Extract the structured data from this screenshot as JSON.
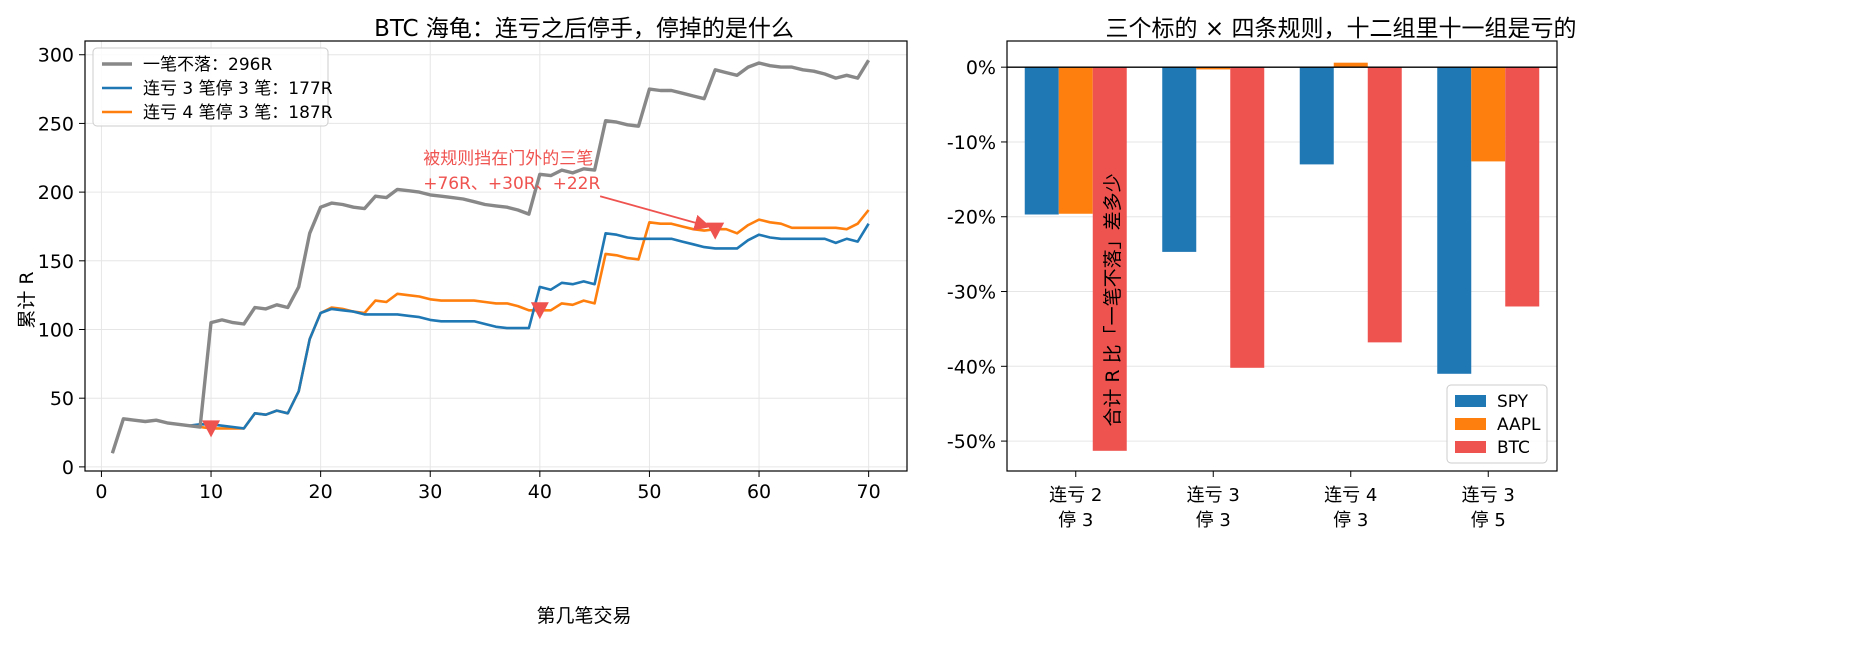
{
  "chart_data": [
    {
      "type": "line",
      "title": "BTC 海龟：连亏之后停手，停掉的是什么",
      "xlabel": "第几笔交易",
      "ylabel": "累计 R",
      "xlim": [
        -1.5,
        73.5
      ],
      "ylim": [
        -3,
        310
      ],
      "xticks": [
        0,
        10,
        20,
        30,
        40,
        50,
        60,
        70
      ],
      "yticks": [
        0,
        50,
        100,
        150,
        200,
        250,
        300
      ],
      "grid": true,
      "legend_position": "top-left",
      "series": [
        {
          "name": "一笔不落：296R",
          "color": "#888888",
          "points": [
            [
              1,
              10
            ],
            [
              2,
              35
            ],
            [
              3,
              34
            ],
            [
              4,
              33
            ],
            [
              5,
              34
            ],
            [
              6,
              32
            ],
            [
              7,
              31
            ],
            [
              8,
              30
            ],
            [
              9,
              29
            ],
            [
              10,
              105
            ],
            [
              11,
              107
            ],
            [
              12,
              105
            ],
            [
              13,
              104
            ],
            [
              14,
              116
            ],
            [
              15,
              115
            ],
            [
              16,
              118
            ],
            [
              17,
              116
            ],
            [
              18,
              131
            ],
            [
              19,
              170
            ],
            [
              20,
              189
            ],
            [
              21,
              192
            ],
            [
              22,
              191
            ],
            [
              23,
              189
            ],
            [
              24,
              188
            ],
            [
              25,
              197
            ],
            [
              26,
              196
            ],
            [
              27,
              202
            ],
            [
              28,
              201
            ],
            [
              29,
              200
            ],
            [
              30,
              198
            ],
            [
              31,
              197
            ],
            [
              32,
              196
            ],
            [
              33,
              195
            ],
            [
              34,
              193
            ],
            [
              35,
              191
            ],
            [
              36,
              190
            ],
            [
              37,
              189
            ],
            [
              38,
              187
            ],
            [
              39,
              184
            ],
            [
              40,
              213
            ],
            [
              41,
              212
            ],
            [
              42,
              216
            ],
            [
              43,
              214
            ],
            [
              44,
              217
            ],
            [
              45,
              216
            ],
            [
              46,
              252
            ],
            [
              47,
              251
            ],
            [
              48,
              249
            ],
            [
              49,
              248
            ],
            [
              50,
              275
            ],
            [
              51,
              274
            ],
            [
              52,
              274
            ],
            [
              53,
              272
            ],
            [
              54,
              270
            ],
            [
              55,
              268
            ],
            [
              56,
              289
            ],
            [
              57,
              287
            ],
            [
              58,
              285
            ],
            [
              59,
              291
            ],
            [
              60,
              294
            ],
            [
              61,
              292
            ],
            [
              62,
              291
            ],
            [
              63,
              291
            ],
            [
              64,
              289
            ],
            [
              65,
              288
            ],
            [
              66,
              286
            ],
            [
              67,
              283
            ],
            [
              68,
              285
            ],
            [
              69,
              283
            ],
            [
              70,
              296
            ]
          ]
        },
        {
          "name": "连亏 3 笔停 3 笔：177R",
          "color": "#1f77b4",
          "points": [
            [
              1,
              10
            ],
            [
              2,
              35
            ],
            [
              3,
              34
            ],
            [
              4,
              33
            ],
            [
              5,
              34
            ],
            [
              6,
              32
            ],
            [
              7,
              31
            ],
            [
              8,
              30
            ],
            [
              9,
              31
            ],
            [
              10,
              31
            ],
            [
              11,
              30
            ],
            [
              12,
              29
            ],
            [
              13,
              28
            ],
            [
              14,
              39
            ],
            [
              15,
              38
            ],
            [
              16,
              41
            ],
            [
              17,
              39
            ],
            [
              18,
              55
            ],
            [
              19,
              93
            ],
            [
              20,
              112
            ],
            [
              21,
              115
            ],
            [
              22,
              114
            ],
            [
              23,
              113
            ],
            [
              24,
              111
            ],
            [
              25,
              111
            ],
            [
              26,
              111
            ],
            [
              27,
              111
            ],
            [
              28,
              110
            ],
            [
              29,
              109
            ],
            [
              30,
              107
            ],
            [
              31,
              106
            ],
            [
              32,
              106
            ],
            [
              33,
              106
            ],
            [
              34,
              106
            ],
            [
              35,
              104
            ],
            [
              36,
              102
            ],
            [
              37,
              101
            ],
            [
              38,
              101
            ],
            [
              39,
              101
            ],
            [
              40,
              131
            ],
            [
              41,
              129
            ],
            [
              42,
              134
            ],
            [
              43,
              133
            ],
            [
              44,
              135
            ],
            [
              45,
              133
            ],
            [
              46,
              170
            ],
            [
              47,
              169
            ],
            [
              48,
              167
            ],
            [
              49,
              166
            ],
            [
              50,
              166
            ],
            [
              51,
              166
            ],
            [
              52,
              166
            ],
            [
              53,
              164
            ],
            [
              54,
              162
            ],
            [
              55,
              160
            ],
            [
              56,
              159
            ],
            [
              57,
              159
            ],
            [
              58,
              159
            ],
            [
              59,
              165
            ],
            [
              60,
              169
            ],
            [
              61,
              167
            ],
            [
              62,
              166
            ],
            [
              63,
              166
            ],
            [
              64,
              166
            ],
            [
              65,
              166
            ],
            [
              66,
              166
            ],
            [
              67,
              163
            ],
            [
              68,
              166
            ],
            [
              69,
              164
            ],
            [
              70,
              177
            ]
          ]
        },
        {
          "name": "连亏 4 笔停 3 笔：187R",
          "color": "#ff7f0e",
          "points": [
            [
              1,
              10
            ],
            [
              2,
              35
            ],
            [
              3,
              34
            ],
            [
              4,
              33
            ],
            [
              5,
              34
            ],
            [
              6,
              32
            ],
            [
              7,
              31
            ],
            [
              8,
              30
            ],
            [
              9,
              29
            ],
            [
              10,
              28
            ],
            [
              11,
              28
            ],
            [
              12,
              28
            ],
            [
              13,
              28
            ],
            [
              14,
              39
            ],
            [
              15,
              38
            ],
            [
              16,
              41
            ],
            [
              17,
              39
            ],
            [
              18,
              55
            ],
            [
              19,
              93
            ],
            [
              20,
              112
            ],
            [
              21,
              116
            ],
            [
              22,
              115
            ],
            [
              23,
              113
            ],
            [
              24,
              112
            ],
            [
              25,
              121
            ],
            [
              26,
              120
            ],
            [
              27,
              126
            ],
            [
              28,
              125
            ],
            [
              29,
              124
            ],
            [
              30,
              122
            ],
            [
              31,
              121
            ],
            [
              32,
              121
            ],
            [
              33,
              121
            ],
            [
              34,
              121
            ],
            [
              35,
              120
            ],
            [
              36,
              119
            ],
            [
              37,
              119
            ],
            [
              38,
              117
            ],
            [
              39,
              114
            ],
            [
              40,
              114
            ],
            [
              41,
              114
            ],
            [
              42,
              119
            ],
            [
              43,
              118
            ],
            [
              44,
              121
            ],
            [
              45,
              119
            ],
            [
              46,
              155
            ],
            [
              47,
              154
            ],
            [
              48,
              152
            ],
            [
              49,
              151
            ],
            [
              50,
              178
            ],
            [
              51,
              177
            ],
            [
              52,
              177
            ],
            [
              53,
              175
            ],
            [
              54,
              173
            ],
            [
              55,
              172
            ],
            [
              56,
              173
            ],
            [
              57,
              173
            ],
            [
              58,
              170
            ],
            [
              59,
              176
            ],
            [
              60,
              180
            ],
            [
              61,
              178
            ],
            [
              62,
              177
            ],
            [
              63,
              174
            ],
            [
              64,
              174
            ],
            [
              65,
              174
            ],
            [
              66,
              174
            ],
            [
              67,
              174
            ],
            [
              68,
              173
            ],
            [
              69,
              177
            ],
            [
              70,
              187
            ]
          ]
        }
      ],
      "markers": {
        "shape": "triangle-down",
        "color": "#ef5350",
        "points": [
          [
            10,
            28
          ],
          [
            40,
            114
          ],
          [
            56,
            172
          ]
        ]
      },
      "annotation": {
        "line1": "被规则挡在门外的三笔",
        "line2": "+76R、+30R、+22R",
        "text_at": [
          30,
          220
        ],
        "arrow_from": [
          45.5,
          197
        ],
        "arrow_to": [
          56,
          172
        ]
      }
    },
    {
      "type": "bar",
      "title": "三个标的 × 四条规则，十二组里十一组是亏的",
      "ylabel": "合计 R 比「一笔不落」差多少",
      "categories": [
        [
          "连亏 2",
          "停 3"
        ],
        [
          "连亏 3",
          "停 3"
        ],
        [
          "连亏 4",
          "停 3"
        ],
        [
          "连亏 3",
          "停 5"
        ]
      ],
      "ylim": [
        -54,
        3.5
      ],
      "yticks": [
        0,
        -10,
        -20,
        -30,
        -40,
        -50
      ],
      "ytick_labels": [
        "0%",
        "-10%",
        "-20%",
        "-30%",
        "-40%",
        "-50%"
      ],
      "grid": true,
      "legend_position": "bottom-right",
      "series": [
        {
          "name": "SPY",
          "color": "#1f77b4",
          "values": [
            -19.7,
            -24.7,
            -13.0,
            -41.0
          ]
        },
        {
          "name": "AAPL",
          "color": "#ff7f0e",
          "values": [
            -19.6,
            -0.3,
            0.6,
            -12.6
          ]
        },
        {
          "name": "BTC",
          "color": "#ef5350",
          "values": [
            -51.3,
            -40.2,
            -36.8,
            -32.0
          ]
        }
      ]
    }
  ]
}
